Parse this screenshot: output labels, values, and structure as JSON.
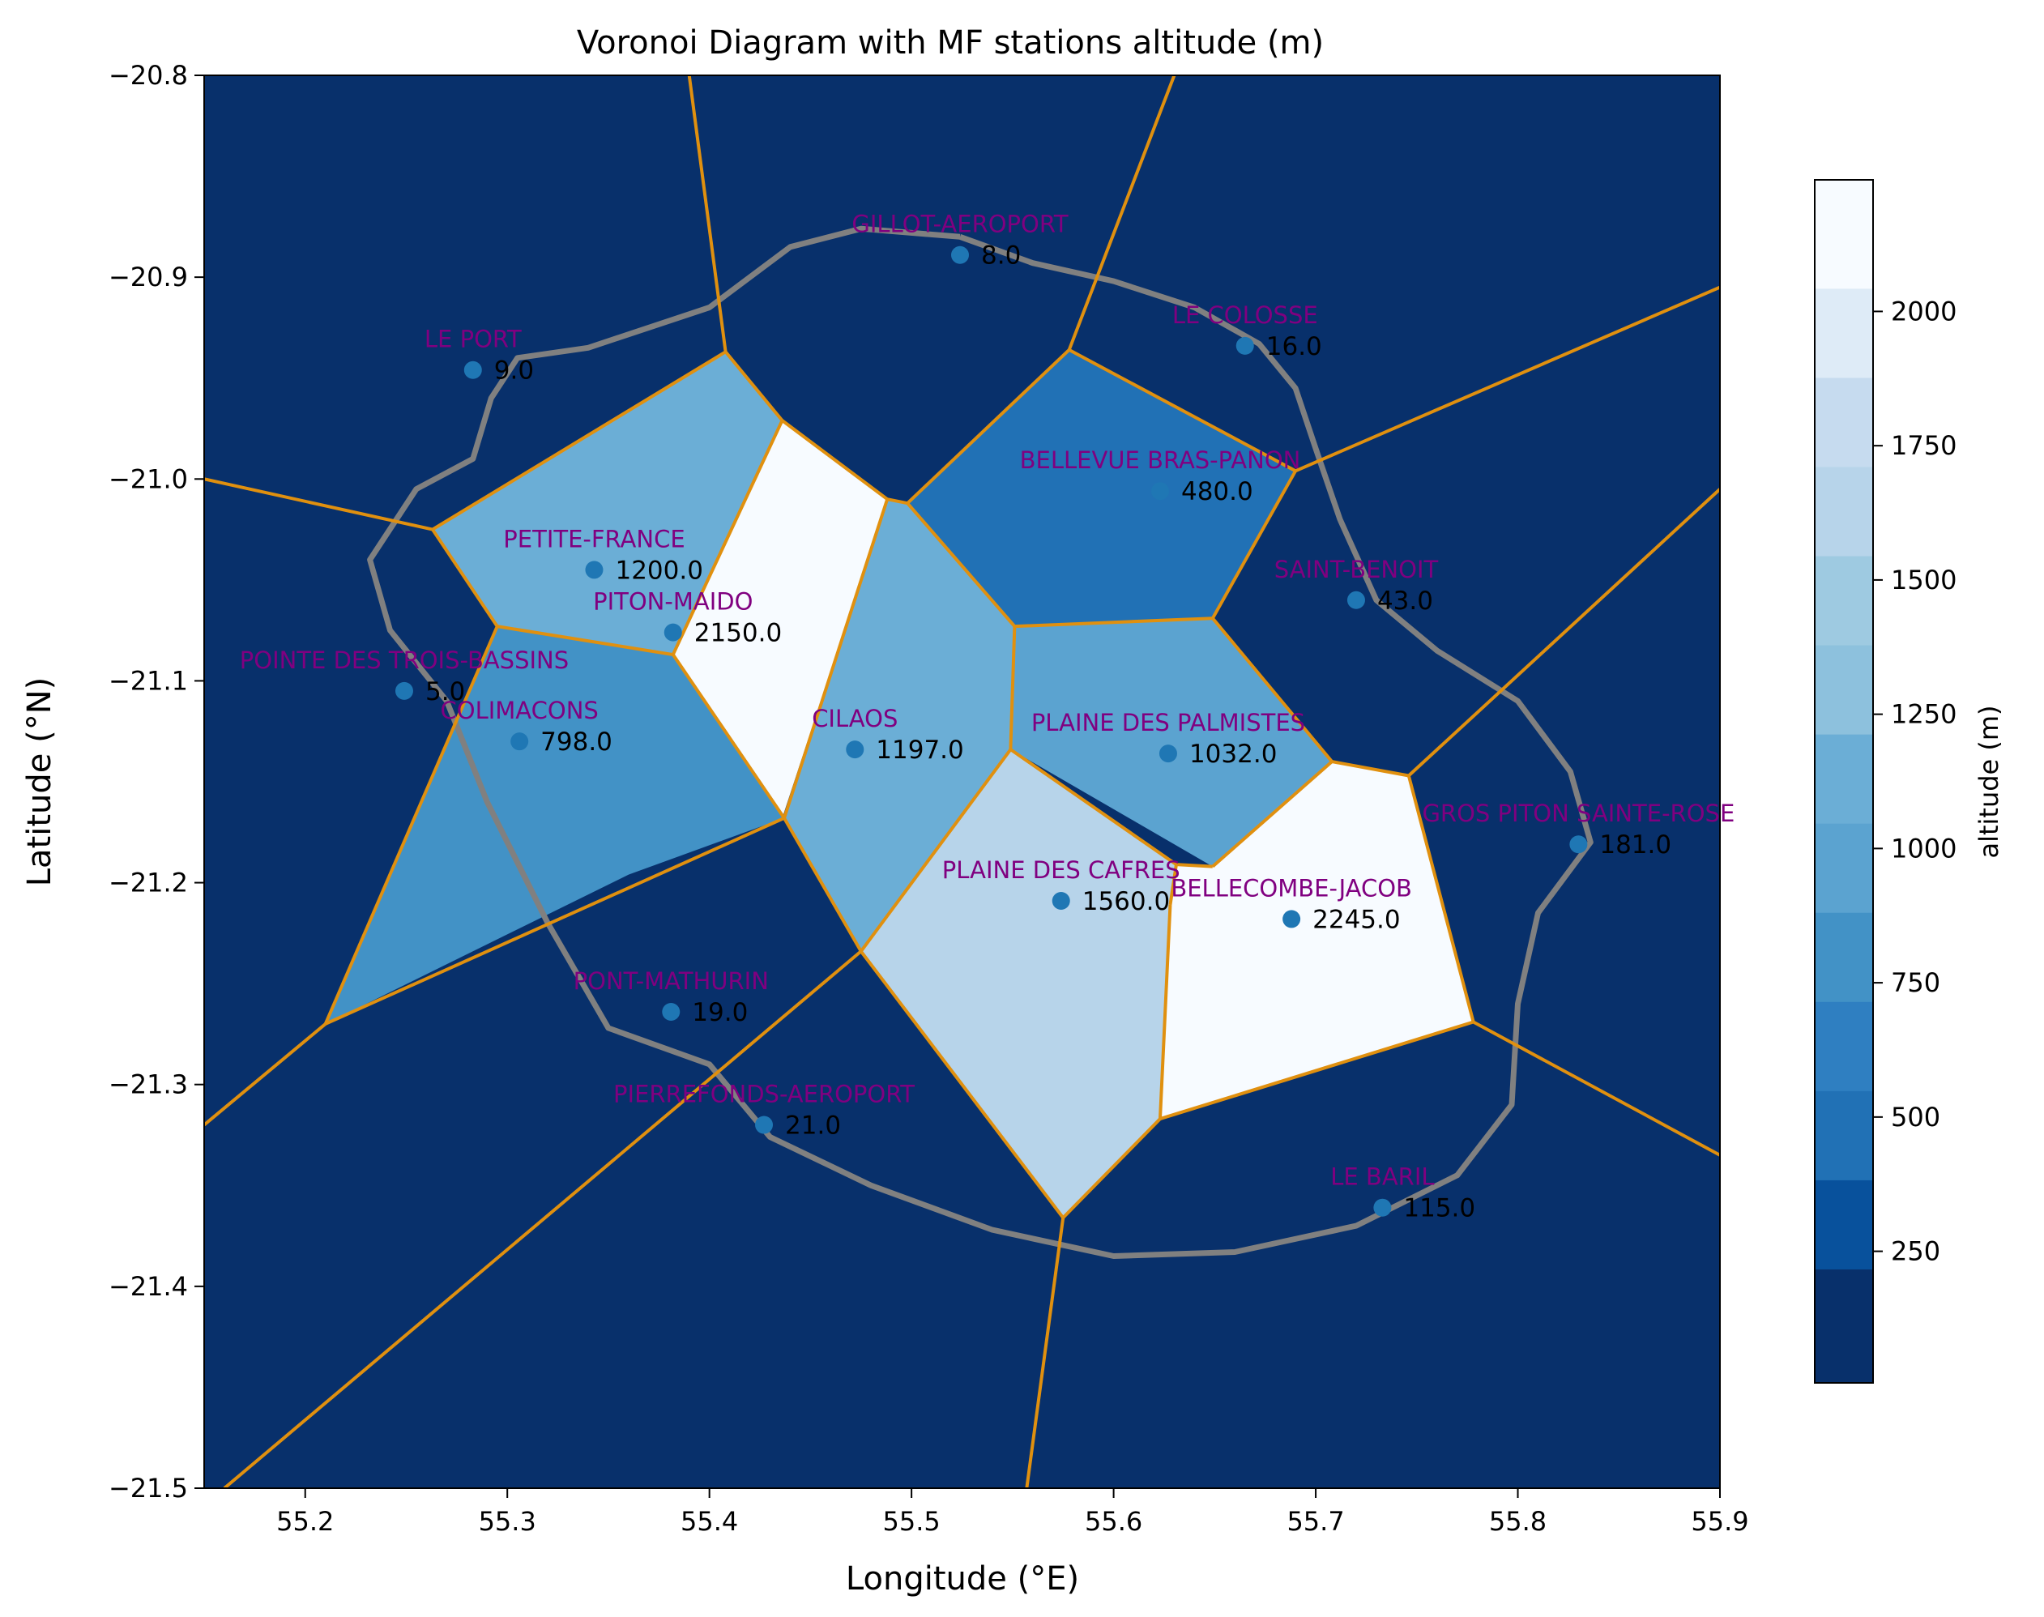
{
  "chart_data": {
    "type": "voronoi",
    "title": "Voronoi Diagram with MF stations altitude (m)",
    "xlabel": "Longitude ($^\\circ$E)",
    "ylabel": "Latitude ($^\\circ$N)",
    "xlabel_text": "Longitude (°E)",
    "ylabel_text": "Latitude (°N)",
    "xlim": [
      55.15,
      55.9
    ],
    "ylim": [
      -21.5,
      -20.8
    ],
    "xticks": [
      55.2,
      55.3,
      55.4,
      55.5,
      55.6,
      55.7,
      55.8,
      55.9
    ],
    "xtick_labels": [
      "55.2",
      "55.3",
      "55.4",
      "55.5",
      "55.6",
      "55.7",
      "55.8",
      "55.9"
    ],
    "yticks": [
      -20.8,
      -20.9,
      -21.0,
      -21.1,
      -21.2,
      -21.3,
      -21.4,
      -21.5
    ],
    "ytick_labels": [
      "−20.8",
      "−20.9",
      "−21.0",
      "−21.1",
      "−21.2",
      "−21.3",
      "−21.4",
      "−21.5"
    ],
    "colorbar": {
      "label": "altitude (m)",
      "ticks": [
        250,
        500,
        750,
        1000,
        1250,
        1500,
        1750,
        2000
      ],
      "tick_labels": [
        "250",
        "500",
        "750",
        "1000",
        "1250",
        "1500",
        "1750",
        "2000"
      ],
      "range": [
        5,
        2245
      ],
      "levels": [
        5,
        217,
        383,
        549,
        715,
        881,
        1047,
        1213,
        1379,
        1545,
        1711,
        1877,
        2043,
        2245
      ],
      "colors": [
        "#08306b",
        "#08519c",
        "#2171b5",
        "#2f7fc1",
        "#4292c6",
        "#5ba3d0",
        "#6baed6",
        "#8dc1dd",
        "#9ecae1",
        "#b7d4ea",
        "#c6dbef",
        "#deebf7",
        "#f7fbff"
      ]
    },
    "stations": [
      {
        "name": "GILLOT-AEROPORT",
        "lon": 55.524,
        "lat": -20.889,
        "altitude": 8.0,
        "label": "8.0"
      },
      {
        "name": "LE COLOSSE",
        "lon": 55.665,
        "lat": -20.934,
        "altitude": 16.0,
        "label": "16.0"
      },
      {
        "name": "LE PORT",
        "lon": 55.283,
        "lat": -20.946,
        "altitude": 9.0,
        "label": "9.0"
      },
      {
        "name": "BELLEVUE BRAS-PANON",
        "lon": 55.623,
        "lat": -21.006,
        "altitude": 480.0,
        "label": "480.0"
      },
      {
        "name": "PETITE-FRANCE",
        "lon": 55.343,
        "lat": -21.045,
        "altitude": 1200.0,
        "label": "1200.0"
      },
      {
        "name": "SAINT-BENOIT",
        "lon": 55.72,
        "lat": -21.06,
        "altitude": 43.0,
        "label": "43.0"
      },
      {
        "name": "PITON-MAIDO",
        "lon": 55.382,
        "lat": -21.076,
        "altitude": 2150.0,
        "label": "2150.0"
      },
      {
        "name": "POINTE DES TROIS-BASSINS",
        "lon": 55.249,
        "lat": -21.105,
        "altitude": 5.0,
        "label": "5.0"
      },
      {
        "name": "COLIMACONS",
        "lon": 55.306,
        "lat": -21.13,
        "altitude": 798.0,
        "label": "798.0"
      },
      {
        "name": "CILAOS",
        "lon": 55.472,
        "lat": -21.134,
        "altitude": 1197.0,
        "label": "1197.0"
      },
      {
        "name": "PLAINE DES PALMISTES",
        "lon": 55.627,
        "lat": -21.136,
        "altitude": 1032.0,
        "label": "1032.0"
      },
      {
        "name": "GROS PITON SAINTE-ROSE",
        "lon": 55.83,
        "lat": -21.181,
        "altitude": 181.0,
        "label": "181.0"
      },
      {
        "name": "PLAINE DES CAFRES",
        "lon": 55.574,
        "lat": -21.209,
        "altitude": 1560.0,
        "label": "1560.0"
      },
      {
        "name": "BELLECOMBE-JACOB",
        "lon": 55.688,
        "lat": -21.218,
        "altitude": 2245.0,
        "label": "2245.0"
      },
      {
        "name": "PONT-MATHURIN",
        "lon": 55.381,
        "lat": -21.264,
        "altitude": 19.0,
        "label": "19.0"
      },
      {
        "name": "PIERREFONDS-AEROPORT",
        "lon": 55.427,
        "lat": -21.32,
        "altitude": 21.0,
        "label": "21.0"
      },
      {
        "name": "LE BARIL",
        "lon": 55.733,
        "lat": -21.361,
        "altitude": 115.0,
        "label": "115.0"
      }
    ],
    "cells": [
      {
        "station": "PETITE-FRANCE",
        "altitude": 1200.0,
        "lonlat": [
          [
            55.263,
            -21.025
          ],
          [
            55.408,
            -20.937
          ],
          [
            55.436,
            -20.971
          ],
          [
            55.382,
            -21.087
          ],
          [
            55.295,
            -21.073
          ]
        ]
      },
      {
        "station": "PITON-MAIDO",
        "altitude": 2150.0,
        "lonlat": [
          [
            55.436,
            -20.971
          ],
          [
            55.488,
            -21.01
          ],
          [
            55.436,
            -21.168
          ],
          [
            55.382,
            -21.087
          ]
        ]
      },
      {
        "station": "COLIMACONS",
        "altitude": 798.0,
        "lonlat": [
          [
            55.295,
            -21.073
          ],
          [
            55.382,
            -21.087
          ],
          [
            55.437,
            -21.168
          ],
          [
            55.36,
            -21.196
          ],
          [
            55.21,
            -21.27
          ]
        ]
      },
      {
        "station": "CILAOS",
        "altitude": 1197.0,
        "lonlat": [
          [
            55.488,
            -21.01
          ],
          [
            55.498,
            -21.012
          ],
          [
            55.551,
            -21.073
          ],
          [
            55.549,
            -21.134
          ],
          [
            55.525,
            -21.167
          ],
          [
            55.475,
            -21.234
          ],
          [
            55.437,
            -21.168
          ]
        ]
      },
      {
        "station": "BELLEVUE BRAS-PANON",
        "altitude": 480.0,
        "lonlat": [
          [
            55.498,
            -21.012
          ],
          [
            55.578,
            -20.936
          ],
          [
            55.69,
            -20.996
          ],
          [
            55.649,
            -21.069
          ],
          [
            55.551,
            -21.073
          ]
        ]
      },
      {
        "station": "PLAINE DES PALMISTES",
        "altitude": 1032.0,
        "lonlat": [
          [
            55.551,
            -21.073
          ],
          [
            55.649,
            -21.069
          ],
          [
            55.708,
            -21.14
          ],
          [
            55.649,
            -21.192
          ],
          [
            55.549,
            -21.134
          ]
        ]
      },
      {
        "station": "PLAINE DES CAFRES",
        "altitude": 1560.0,
        "lonlat": [
          [
            55.549,
            -21.134
          ],
          [
            55.631,
            -21.191
          ],
          [
            55.628,
            -21.211
          ],
          [
            55.623,
            -21.317
          ],
          [
            55.575,
            -21.366
          ],
          [
            55.475,
            -21.234
          ]
        ]
      },
      {
        "station": "BELLECOMBE-JACOB",
        "altitude": 2245.0,
        "lonlat": [
          [
            55.631,
            -21.191
          ],
          [
            55.649,
            -21.192
          ],
          [
            55.708,
            -21.14
          ],
          [
            55.746,
            -21.147
          ],
          [
            55.778,
            -21.269
          ],
          [
            55.623,
            -21.317
          ],
          [
            55.628,
            -21.211
          ]
        ]
      }
    ],
    "edges_lonlat": [
      [
        [
          55.39,
          -20.8
        ],
        [
          55.408,
          -20.937
        ]
      ],
      [
        [
          55.408,
          -20.937
        ],
        [
          55.263,
          -21.025
        ]
      ],
      [
        [
          55.263,
          -21.025
        ],
        [
          55.15,
          -21.0
        ]
      ],
      [
        [
          55.408,
          -20.937
        ],
        [
          55.436,
          -20.971
        ]
      ],
      [
        [
          55.263,
          -21.025
        ],
        [
          55.295,
          -21.073
        ]
      ],
      [
        [
          55.295,
          -21.073
        ],
        [
          55.382,
          -21.087
        ]
      ],
      [
        [
          55.436,
          -20.971
        ],
        [
          55.382,
          -21.087
        ]
      ],
      [
        [
          55.436,
          -20.971
        ],
        [
          55.488,
          -21.01
        ]
      ],
      [
        [
          55.488,
          -21.01
        ],
        [
          55.498,
          -21.012
        ]
      ],
      [
        [
          55.382,
          -21.087
        ],
        [
          55.437,
          -21.168
        ]
      ],
      [
        [
          55.488,
          -21.01
        ],
        [
          55.437,
          -21.168
        ]
      ],
      [
        [
          55.295,
          -21.073
        ],
        [
          55.21,
          -21.27
        ]
      ],
      [
        [
          55.21,
          -21.27
        ],
        [
          55.437,
          -21.168
        ]
      ],
      [
        [
          55.21,
          -21.27
        ],
        [
          55.15,
          -21.32
        ]
      ],
      [
        [
          55.437,
          -21.168
        ],
        [
          55.475,
          -21.234
        ]
      ],
      [
        [
          55.475,
          -21.234
        ],
        [
          55.16,
          -21.5
        ]
      ],
      [
        [
          55.475,
          -21.234
        ],
        [
          55.549,
          -21.134
        ]
      ],
      [
        [
          55.549,
          -21.134
        ],
        [
          55.551,
          -21.073
        ]
      ],
      [
        [
          55.551,
          -21.073
        ],
        [
          55.498,
          -21.012
        ]
      ],
      [
        [
          55.498,
          -21.012
        ],
        [
          55.578,
          -20.936
        ]
      ],
      [
        [
          55.578,
          -20.936
        ],
        [
          55.63,
          -20.8
        ]
      ],
      [
        [
          55.578,
          -20.936
        ],
        [
          55.69,
          -20.996
        ]
      ],
      [
        [
          55.69,
          -20.996
        ],
        [
          55.9,
          -20.905
        ]
      ],
      [
        [
          55.69,
          -20.996
        ],
        [
          55.649,
          -21.069
        ]
      ],
      [
        [
          55.649,
          -21.069
        ],
        [
          55.551,
          -21.073
        ]
      ],
      [
        [
          55.649,
          -21.069
        ],
        [
          55.708,
          -21.14
        ]
      ],
      [
        [
          55.708,
          -21.14
        ],
        [
          55.746,
          -21.147
        ]
      ],
      [
        [
          55.746,
          -21.147
        ],
        [
          55.9,
          -21.005
        ]
      ],
      [
        [
          55.746,
          -21.147
        ],
        [
          55.778,
          -21.269
        ]
      ],
      [
        [
          55.778,
          -21.269
        ],
        [
          55.9,
          -21.335
        ]
      ],
      [
        [
          55.778,
          -21.269
        ],
        [
          55.623,
          -21.317
        ]
      ],
      [
        [
          55.623,
          -21.317
        ],
        [
          55.628,
          -21.211
        ]
      ],
      [
        [
          55.628,
          -21.211
        ],
        [
          55.631,
          -21.191
        ]
      ],
      [
        [
          55.631,
          -21.191
        ],
        [
          55.649,
          -21.192
        ]
      ],
      [
        [
          55.649,
          -21.192
        ],
        [
          55.708,
          -21.14
        ]
      ],
      [
        [
          55.631,
          -21.191
        ],
        [
          55.549,
          -21.134
        ]
      ],
      [
        [
          55.623,
          -21.317
        ],
        [
          55.575,
          -21.366
        ]
      ],
      [
        [
          55.575,
          -21.366
        ],
        [
          55.475,
          -21.234
        ]
      ],
      [
        [
          55.575,
          -21.366
        ],
        [
          55.557,
          -21.5
        ]
      ]
    ],
    "coastline_lonlat": [
      [
        55.524,
        -20.88
      ],
      [
        55.56,
        -20.893
      ],
      [
        55.6,
        -20.902
      ],
      [
        55.64,
        -20.915
      ],
      [
        55.672,
        -20.933
      ],
      [
        55.69,
        -20.955
      ],
      [
        55.7,
        -20.985
      ],
      [
        55.712,
        -21.02
      ],
      [
        55.73,
        -21.06
      ],
      [
        55.76,
        -21.085
      ],
      [
        55.8,
        -21.11
      ],
      [
        55.826,
        -21.145
      ],
      [
        55.836,
        -21.18
      ],
      [
        55.81,
        -21.215
      ],
      [
        55.8,
        -21.26
      ],
      [
        55.797,
        -21.31
      ],
      [
        55.77,
        -21.345
      ],
      [
        55.72,
        -21.37
      ],
      [
        55.66,
        -21.383
      ],
      [
        55.6,
        -21.385
      ],
      [
        55.54,
        -21.372
      ],
      [
        55.48,
        -21.35
      ],
      [
        55.43,
        -21.326
      ],
      [
        55.4,
        -21.29
      ],
      [
        55.35,
        -21.272
      ],
      [
        55.32,
        -21.22
      ],
      [
        55.29,
        -21.16
      ],
      [
        55.27,
        -21.11
      ],
      [
        55.242,
        -21.075
      ],
      [
        55.232,
        -21.04
      ],
      [
        55.255,
        -21.005
      ],
      [
        55.283,
        -20.99
      ],
      [
        55.292,
        -20.96
      ],
      [
        55.305,
        -20.94
      ],
      [
        55.34,
        -20.935
      ],
      [
        55.4,
        -20.915
      ],
      [
        55.44,
        -20.885
      ],
      [
        55.475,
        -20.876
      ],
      [
        55.524,
        -20.88
      ]
    ]
  }
}
